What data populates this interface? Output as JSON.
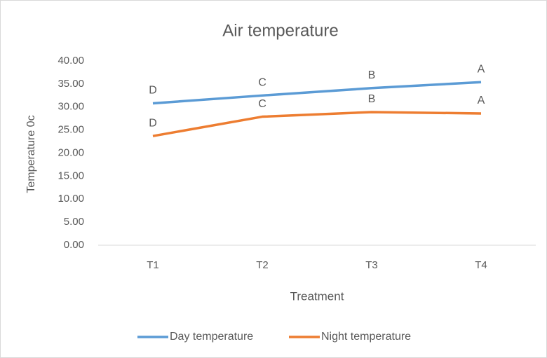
{
  "chart_data": {
    "type": "line",
    "title": "Air temperature",
    "x_label": "Treatment",
    "y_label": "Temperature 0c",
    "categories": [
      "T1",
      "T2",
      "T3",
      "T4"
    ],
    "series": [
      {
        "name": "Day temperature",
        "color": "#5b9bd5",
        "values": [
          30.8,
          32.5,
          34.1,
          35.4
        ],
        "point_labels": [
          "D",
          "C",
          "B",
          "A"
        ]
      },
      {
        "name": "Night temperature",
        "color": "#ed7d31",
        "values": [
          23.7,
          27.9,
          28.9,
          28.6
        ],
        "point_labels": [
          "D",
          "C",
          "B",
          "A"
        ]
      }
    ],
    "ylim": [
      0,
      40
    ],
    "yticks": [
      {
        "value": 0,
        "label": "0.00"
      },
      {
        "value": 5,
        "label": "5.00"
      },
      {
        "value": 10,
        "label": "10.00"
      },
      {
        "value": 15,
        "label": "15.00"
      },
      {
        "value": 20,
        "label": "20.00"
      },
      {
        "value": 25,
        "label": "25.00"
      },
      {
        "value": 30,
        "label": "30.00"
      },
      {
        "value": 35,
        "label": "35.00"
      },
      {
        "value": 40,
        "label": "40.00"
      }
    ],
    "grid": false,
    "legend": "bottom"
  }
}
